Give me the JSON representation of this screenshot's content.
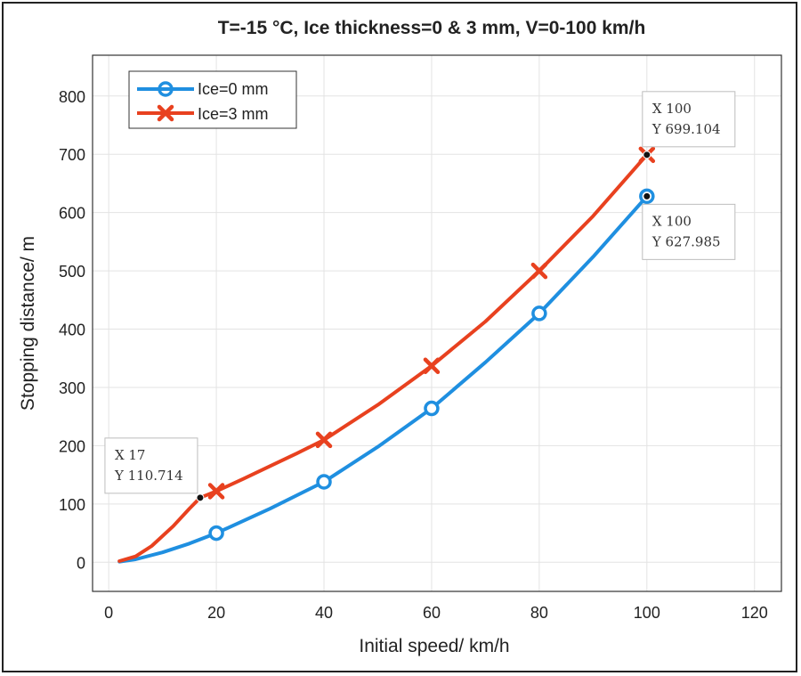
{
  "chart_data": {
    "type": "line",
    "title": "T=-15 °C, Ice thickness=0 & 3 mm, V=0-100 km/h",
    "xlabel": "Initial speed/ km/h",
    "ylabel": "Stopping distance/ m",
    "xlim": [
      -3,
      125
    ],
    "ylim": [
      -50,
      870
    ],
    "xticks": [
      0,
      20,
      40,
      60,
      80,
      100,
      120
    ],
    "yticks": [
      0,
      100,
      200,
      300,
      400,
      500,
      600,
      700,
      800
    ],
    "grid": true,
    "legend_position": "top-left",
    "series": [
      {
        "name": "Ice=0 mm",
        "color": "#1f8fe0",
        "marker": "circle",
        "curve_x": [
          2,
          5,
          10,
          15,
          20,
          30,
          40,
          50,
          60,
          70,
          80,
          90,
          100
        ],
        "curve_y": [
          1,
          5,
          17,
          32,
          50,
          92,
          138,
          198,
          264,
          343,
          427,
          524,
          627.985
        ],
        "marker_x": [
          20,
          40,
          60,
          80,
          100
        ],
        "marker_y": [
          50,
          138,
          264,
          427,
          627.985
        ]
      },
      {
        "name": "Ice=3 mm",
        "color": "#e8411f",
        "marker": "x",
        "curve_x": [
          2,
          5,
          8,
          12,
          15,
          17,
          20,
          25,
          30,
          35,
          40,
          50,
          60,
          70,
          80,
          90,
          100
        ],
        "curve_y": [
          2,
          10,
          28,
          62,
          92,
          110.714,
          122,
          143,
          165,
          187,
          210,
          270,
          337,
          413,
          500,
          594,
          699.104
        ],
        "marker_x": [
          20,
          40,
          60,
          80,
          100
        ],
        "marker_y": [
          122,
          210,
          337,
          500,
          699.104
        ]
      }
    ],
    "datatips": [
      {
        "x": 17,
        "y": 110.714,
        "line1": "X 17",
        "line2": "Y 110.714"
      },
      {
        "x": 100,
        "y": 699.104,
        "line1": "X 100",
        "line2": "Y 699.104"
      },
      {
        "x": 100,
        "y": 627.985,
        "line1": "X 100",
        "line2": "Y 627.985"
      }
    ]
  }
}
